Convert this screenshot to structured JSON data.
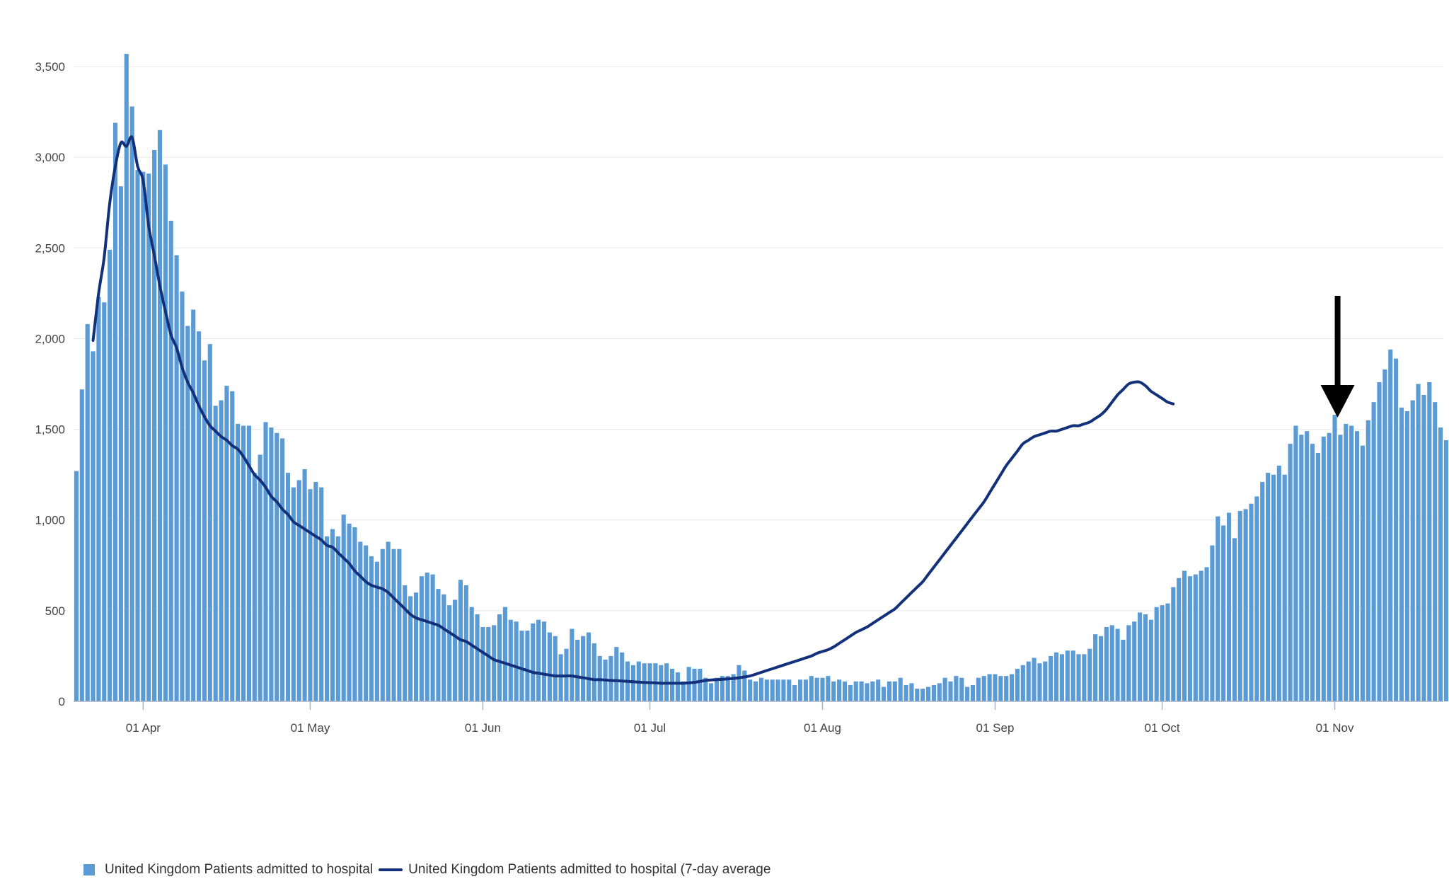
{
  "chart_data": {
    "type": "bar",
    "x_start": "2020-03-20",
    "x_end": "2020-11-20",
    "ylim": [
      0,
      3750
    ],
    "y_ticks": [
      0,
      500,
      1000,
      1500,
      2000,
      2500,
      3000,
      3500
    ],
    "y_tick_labels": [
      "0",
      "500",
      "1,000",
      "1,500",
      "2,000",
      "2,500",
      "3,000",
      "3,500"
    ],
    "x_ticks": [
      {
        "date": "2020-04-01",
        "label": "01 Apr"
      },
      {
        "date": "2020-05-01",
        "label": "01 May"
      },
      {
        "date": "2020-06-01",
        "label": "01 Jun"
      },
      {
        "date": "2020-07-01",
        "label": "01 Jul"
      },
      {
        "date": "2020-08-01",
        "label": "01 Aug"
      },
      {
        "date": "2020-09-01",
        "label": "01 Sep"
      },
      {
        "date": "2020-10-01",
        "label": "01 Oct"
      },
      {
        "date": "2020-11-01",
        "label": "01 Nov"
      }
    ],
    "grid": true,
    "legend_position": "bottom-left",
    "series": [
      {
        "name": "United Kingdom Patients admitted to hospital",
        "type": "bar",
        "color": "#5b9bd5",
        "values": [
          1270,
          1720,
          2080,
          1930,
          2230,
          2200,
          2490,
          3190,
          2840,
          3570,
          3280,
          2930,
          2920,
          2910,
          3040,
          3150,
          2960,
          2650,
          2460,
          2260,
          2070,
          2160,
          2040,
          1880,
          1970,
          1630,
          1660,
          1740,
          1710,
          1530,
          1520,
          1520,
          1260,
          1360,
          1540,
          1510,
          1480,
          1450,
          1260,
          1180,
          1220,
          1280,
          1170,
          1210,
          1180,
          910,
          950,
          910,
          1030,
          980,
          960,
          880,
          860,
          800,
          770,
          840,
          880,
          840,
          840,
          640,
          580,
          600,
          690,
          710,
          700,
          620,
          590,
          530,
          560,
          670,
          640,
          520,
          480,
          410,
          410,
          420,
          480,
          520,
          450,
          440,
          390,
          390,
          430,
          450,
          440,
          380,
          360,
          260,
          290,
          400,
          340,
          360,
          380,
          320,
          250,
          230,
          250,
          300,
          270,
          220,
          200,
          220,
          210,
          210,
          210,
          200,
          210,
          180,
          160,
          110,
          190,
          180,
          180,
          130,
          100,
          130,
          140,
          140,
          150,
          200,
          170,
          120,
          110,
          130,
          120,
          120,
          120,
          120,
          120,
          90,
          120,
          120,
          140,
          130,
          130,
          140,
          110,
          120,
          110,
          90,
          110,
          110,
          100,
          110,
          120,
          80,
          110,
          110,
          130,
          90,
          100,
          70,
          70,
          80,
          90,
          100,
          130,
          110,
          140,
          130,
          80,
          90,
          130,
          140,
          150,
          150,
          140,
          140,
          150,
          180,
          200,
          220,
          240,
          210,
          220,
          250,
          270,
          260,
          280,
          280,
          260,
          260,
          290,
          370,
          360,
          410,
          420,
          400,
          340,
          420,
          440,
          490,
          480,
          450,
          520,
          530,
          540,
          630,
          680,
          720,
          690,
          700,
          720,
          740,
          860,
          1020,
          970,
          1040,
          900,
          1050,
          1060,
          1090,
          1130,
          1210,
          1260,
          1250,
          1300,
          1250,
          1420,
          1520,
          1470,
          1490,
          1420,
          1370,
          1460,
          1480,
          1580,
          1470,
          1530,
          1520,
          1490,
          1410,
          1550,
          1650,
          1760,
          1830,
          1940,
          1890,
          1620,
          1600,
          1660,
          1750,
          1690,
          1760,
          1650,
          1510,
          1440
        ]
      },
      {
        "name": "United Kingdom Patients admitted to hospital (7-day average",
        "type": "line",
        "color": "#13317a",
        "start_index": 3,
        "values": [
          1990,
          2250,
          2450,
          2750,
          2950,
          3080,
          3060,
          3110,
          2950,
          2870,
          2620,
          2460,
          2290,
          2150,
          2020,
          1950,
          1840,
          1760,
          1700,
          1630,
          1570,
          1520,
          1490,
          1460,
          1440,
          1410,
          1390,
          1350,
          1300,
          1250,
          1220,
          1180,
          1130,
          1100,
          1060,
          1030,
          990,
          970,
          950,
          930,
          910,
          890,
          860,
          850,
          820,
          790,
          760,
          720,
          690,
          660,
          640,
          630,
          620,
          600,
          570,
          540,
          510,
          480,
          460,
          450,
          440,
          430,
          420,
          400,
          380,
          360,
          340,
          330,
          310,
          290,
          270,
          250,
          230,
          220,
          210,
          200,
          190,
          180,
          170,
          160,
          155,
          150,
          145,
          140,
          140,
          140,
          140,
          135,
          130,
          125,
          120,
          120,
          118,
          115,
          114,
          112,
          110,
          108,
          106,
          104,
          103,
          102,
          100,
          100,
          100,
          100,
          100,
          102,
          105,
          110,
          115,
          118,
          120,
          122,
          124,
          126,
          130,
          135,
          140,
          150,
          160,
          170,
          180,
          190,
          200,
          210,
          220,
          230,
          240,
          250,
          265,
          275,
          285,
          300,
          320,
          340,
          360,
          380,
          395,
          410,
          430,
          450,
          470,
          490,
          510,
          540,
          570,
          600,
          630,
          660,
          700,
          740,
          780,
          820,
          860,
          900,
          940,
          980,
          1020,
          1060,
          1100,
          1150,
          1200,
          1250,
          1300,
          1340,
          1380,
          1420,
          1440,
          1460,
          1470,
          1480,
          1490,
          1490,
          1500,
          1510,
          1520,
          1520,
          1530,
          1540,
          1560,
          1580,
          1610,
          1650,
          1690,
          1720,
          1750,
          1760,
          1760,
          1740,
          1710,
          1690,
          1670,
          1650,
          1640
        ]
      }
    ],
    "annotation": {
      "type": "arrow",
      "date": "2020-11-01",
      "color": "#000000"
    }
  }
}
